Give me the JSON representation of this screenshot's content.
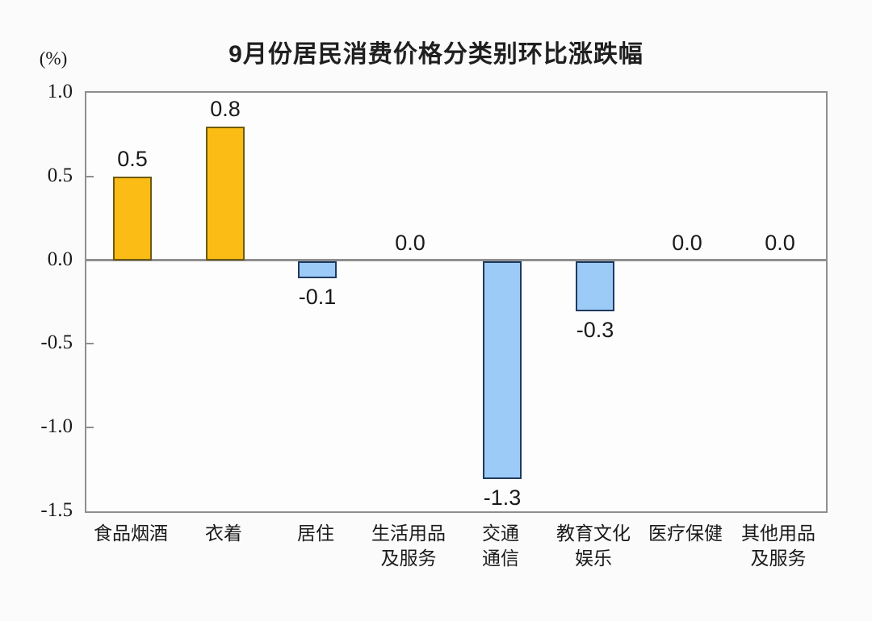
{
  "chart_data": {
    "type": "bar",
    "title": "9月份居民消费价格分类别环比涨跌幅",
    "unit_label": "(%)",
    "categories": [
      "食品烟酒",
      "衣着",
      "居住",
      "生活用品\n及服务",
      "交通\n通信",
      "教育文化\n娱乐",
      "医疗保健",
      "其他用品\n及服务"
    ],
    "values": [
      0.5,
      0.8,
      -0.1,
      0.0,
      -1.3,
      -0.3,
      0.0,
      0.0
    ],
    "value_labels": [
      "0.5",
      "0.8",
      "-0.1",
      "0.0",
      "-1.3",
      "-0.3",
      "0.0",
      "0.0"
    ],
    "xlabel": "",
    "ylabel": "(%)",
    "ylim": [
      -1.5,
      1.0
    ],
    "y_ticks": [
      1.0,
      0.5,
      0.0,
      -0.5,
      -1.0,
      -1.5
    ],
    "y_tick_labels": [
      "1.0",
      "0.5",
      "0.0",
      "-0.5",
      "-1.0",
      "-1.5"
    ],
    "inner_tick_values": [
      0.5,
      -0.5,
      -1.0
    ],
    "grid": false,
    "legend": false,
    "colors": {
      "positive_fill": "#fbbc15",
      "positive_border": "#6e5a10",
      "negative_fill": "#9dcbf8",
      "negative_border": "#1f3a5f",
      "axis": "#8f8f8f",
      "text": "#1a1a1a"
    }
  }
}
